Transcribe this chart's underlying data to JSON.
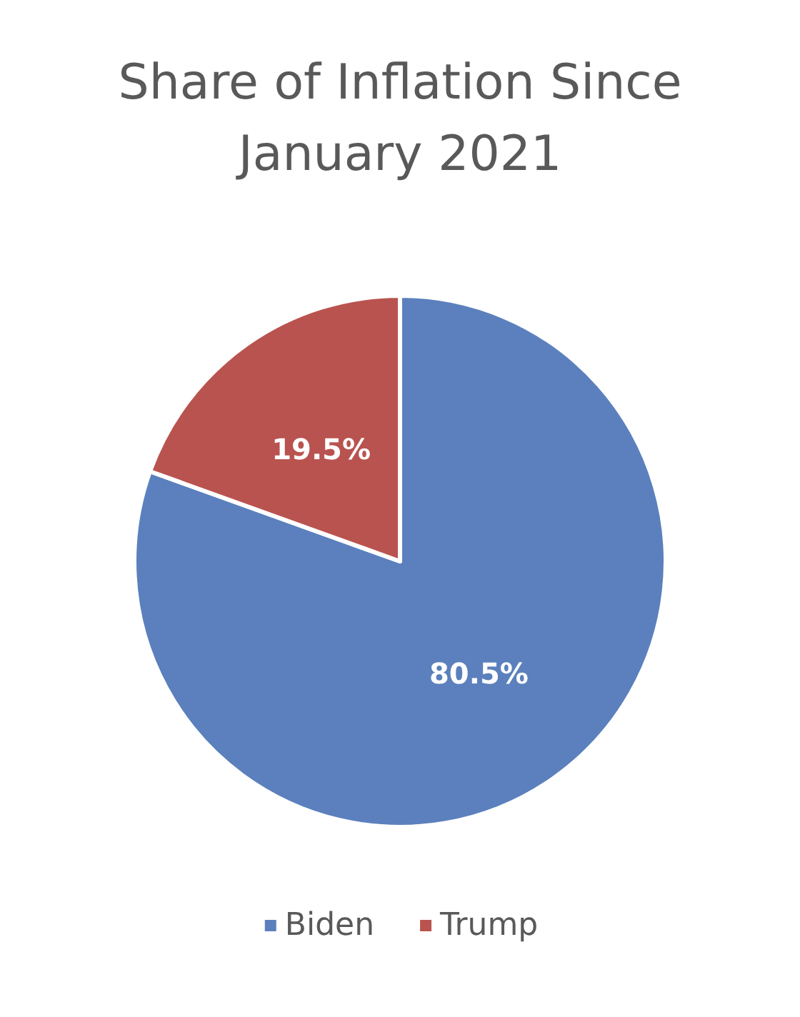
{
  "chart_data": {
    "type": "pie",
    "title": "Share of Inflation Since\nJanuary 2021",
    "categories": [
      "Biden",
      "Trump"
    ],
    "values": [
      80.5,
      19.5
    ],
    "colors": [
      "#5b80bd",
      "#b9534f"
    ],
    "value_labels": [
      "80.5%",
      "19.5%"
    ],
    "legend": "bottom"
  }
}
